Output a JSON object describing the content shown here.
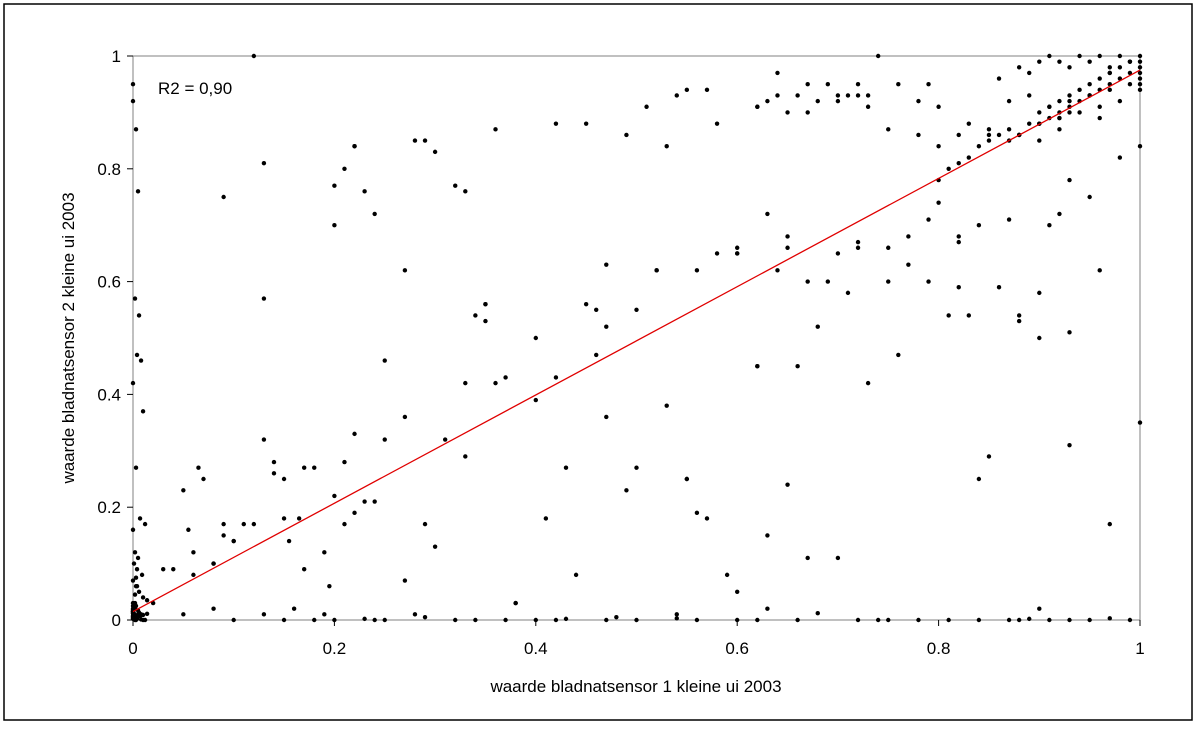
{
  "chart_data": {
    "type": "scatter",
    "title": "",
    "xlabel": "waarde bladnatsensor 1 kleine ui 2003",
    "ylabel": "waarde bladnatsensor 2 kleine ui 2003",
    "xlim": [
      0,
      1
    ],
    "ylim": [
      0,
      1
    ],
    "x_ticks": [
      "0",
      "0.2",
      "0.4",
      "0.6",
      "0.8",
      "1"
    ],
    "y_ticks": [
      "0",
      "0.2",
      "0.4",
      "0.6",
      "0.8",
      "1"
    ],
    "grid": false,
    "legend": "none",
    "annotation": "R2 = 0,90",
    "trendline": {
      "x": [
        0,
        1
      ],
      "y": [
        0.015,
        0.975
      ],
      "color": "#e00000"
    },
    "point_color": "#000000",
    "series": [
      {
        "x": [
          0.0,
          0.0,
          0.003,
          0.005,
          0.002,
          0.006,
          0.004,
          0.008,
          0.0,
          0.01,
          0.003,
          0.007,
          0.012,
          0.0,
          0.002,
          0.005,
          0.001,
          0.004,
          0.009,
          0.0,
          0.003,
          0.006,
          0.01,
          0.014,
          0.002,
          0.0,
          0.001,
          0.0,
          0.0,
          0.0,
          0.002,
          0.005,
          0.0,
          0.0,
          0.001,
          0.0,
          0.004,
          0.008,
          0.01,
          0.012,
          0.003,
          0.002,
          0.0,
          0.0,
          0.0,
          0.005,
          0.0,
          0.002,
          0.003,
          0.001,
          0.004,
          0.007,
          0.01,
          0.014,
          0.006,
          0.0,
          0.0,
          0.001,
          0.0,
          0.008,
          0.0,
          0.002,
          0.004,
          0.003,
          0.03,
          0.05,
          0.055,
          0.06,
          0.065,
          0.07,
          0.08,
          0.09,
          0.1,
          0.11,
          0.13,
          0.14,
          0.15,
          0.155,
          0.165,
          0.18,
          0.19,
          0.195,
          0.2,
          0.21,
          0.22,
          0.23,
          0.25,
          0.27,
          0.3,
          0.31,
          0.33,
          0.35,
          0.36,
          0.37,
          0.4,
          0.42,
          0.43,
          0.45,
          0.46,
          0.47,
          0.5,
          0.52,
          0.55,
          0.57,
          0.6,
          0.62,
          0.63,
          0.65,
          0.66,
          0.67,
          0.69,
          0.7,
          0.72,
          0.75,
          0.77,
          0.8,
          0.82,
          0.85,
          0.87,
          0.9,
          0.04,
          0.06,
          0.08,
          0.09,
          0.12,
          0.15,
          0.17,
          0.21,
          0.22,
          0.24,
          0.27,
          0.29,
          0.33,
          0.35,
          0.38,
          0.41,
          0.44,
          0.47,
          0.5,
          0.53,
          0.56,
          0.59,
          0.62,
          0.65,
          0.68,
          0.71,
          0.73,
          0.76,
          0.79,
          0.82,
          0.84,
          0.88,
          0.91,
          0.93,
          0.12,
          0.13,
          0.2,
          0.21,
          0.22,
          0.22,
          0.23,
          0.24,
          0.28,
          0.29,
          0.3,
          0.32,
          0.33,
          0.36,
          0.42,
          0.45,
          0.49,
          0.51,
          0.53,
          0.54,
          0.55,
          0.57,
          0.58,
          0.62,
          0.63,
          0.64,
          0.66,
          0.67,
          0.69,
          0.7,
          0.72,
          0.73,
          0.74,
          0.78,
          0.8,
          0.09,
          0.1,
          0.13,
          0.14,
          0.17,
          0.2,
          0.25,
          0.27,
          0.34,
          0.35,
          0.4,
          0.46,
          0.47,
          0.49,
          0.52,
          0.55,
          0.56,
          0.58,
          0.6,
          0.63,
          0.64,
          0.65,
          0.67,
          0.72,
          0.75,
          0.77,
          0.79,
          0.81,
          0.82,
          0.83,
          0.84,
          0.86,
          0.88,
          0.9,
          0.92,
          0.93,
          0.95,
          0.96,
          0.98,
          0.15,
          0.18,
          0.19,
          0.23,
          0.25,
          0.29,
          0.32,
          0.37,
          0.4,
          0.43,
          0.48,
          0.5,
          0.54,
          0.56,
          0.6,
          0.62,
          0.66,
          0.68,
          0.72,
          0.74,
          0.78,
          0.81,
          0.84,
          0.87,
          0.89,
          0.91,
          0.93,
          0.95,
          0.97,
          0.99,
          1.0,
          1.0,
          0.8,
          0.81,
          0.82,
          0.83,
          0.84,
          0.85,
          0.86,
          0.87,
          0.88,
          0.89,
          0.9,
          0.9,
          0.91,
          0.91,
          0.92,
          0.92,
          0.93,
          0.93,
          0.94,
          0.94,
          0.95,
          0.95,
          0.96,
          0.96,
          0.97,
          0.97,
          0.98,
          0.98,
          0.99,
          0.99,
          1.0,
          1.0,
          1.0,
          1.0,
          1.0,
          1.0,
          0.86,
          0.88,
          0.89,
          0.9,
          0.91,
          0.92,
          0.93,
          0.94,
          0.95,
          0.96,
          0.97,
          0.98,
          0.99,
          0.87,
          0.89,
          0.91,
          0.93,
          0.95,
          0.97,
          0.99,
          0.9,
          0.92,
          0.94,
          0.96,
          0.98,
          0.85,
          0.88,
          0.92,
          0.96,
          1.0,
          0.6,
          0.62,
          0.64,
          0.65,
          0.67,
          0.68,
          0.7,
          0.71,
          0.72,
          0.73,
          0.75,
          0.76,
          0.78,
          0.79,
          0.8,
          0.82,
          0.83,
          0.85,
          0.87,
          0.88,
          0.9,
          0.92,
          0.93,
          0.95,
          0.97,
          0.02,
          0.05,
          0.08,
          0.1,
          0.13,
          0.16,
          0.2,
          0.24,
          0.28,
          0.34,
          0.38,
          0.42,
          0.47,
          0.54,
          0.6,
          0.63,
          0.7,
          0.75,
          0.88,
          0.9,
          0.93,
          0.97
        ],
        "y": [
          0.95,
          0.92,
          0.87,
          0.76,
          0.57,
          0.54,
          0.47,
          0.46,
          0.42,
          0.37,
          0.27,
          0.18,
          0.17,
          0.16,
          0.12,
          0.11,
          0.1,
          0.09,
          0.08,
          0.07,
          0.06,
          0.05,
          0.04,
          0.035,
          0.03,
          0.025,
          0.02,
          0.018,
          0.015,
          0.012,
          0.01,
          0.008,
          0.006,
          0.005,
          0.004,
          0.003,
          0.002,
          0.001,
          0.0,
          0.0,
          0.0,
          0.0,
          0.002,
          0.012,
          0.015,
          0.017,
          0.02,
          0.022,
          0.025,
          0.005,
          0.006,
          0.007,
          0.009,
          0.011,
          0.013,
          0.014,
          0.016,
          0.018,
          0.008,
          0.01,
          0.03,
          0.045,
          0.06,
          0.075,
          0.09,
          0.23,
          0.16,
          0.12,
          0.27,
          0.25,
          0.1,
          0.17,
          0.14,
          0.17,
          0.32,
          0.28,
          0.25,
          0.14,
          0.18,
          0.27,
          0.12,
          0.06,
          0.22,
          0.28,
          0.33,
          0.21,
          0.32,
          0.36,
          0.13,
          0.32,
          0.42,
          0.56,
          0.42,
          0.43,
          0.39,
          0.43,
          0.27,
          0.56,
          0.47,
          0.52,
          0.55,
          0.62,
          0.25,
          0.18,
          0.66,
          0.45,
          0.15,
          0.68,
          0.45,
          0.11,
          0.6,
          0.65,
          0.66,
          0.6,
          0.68,
          0.74,
          0.68,
          0.29,
          0.71,
          0.5,
          0.09,
          0.08,
          0.1,
          0.15,
          0.17,
          0.18,
          0.09,
          0.17,
          0.19,
          0.21,
          0.07,
          0.17,
          0.29,
          0.53,
          0.03,
          0.18,
          0.08,
          0.36,
          0.27,
          0.38,
          0.19,
          0.08,
          0.45,
          0.24,
          0.52,
          0.58,
          0.42,
          0.47,
          0.6,
          0.67,
          0.25,
          0.54,
          0.7,
          0.78,
          1.0,
          0.81,
          0.77,
          0.8,
          0.84,
          0.84,
          0.76,
          0.72,
          0.85,
          0.85,
          0.83,
          0.77,
          0.76,
          0.87,
          0.88,
          0.88,
          0.86,
          0.91,
          0.84,
          0.93,
          0.94,
          0.94,
          0.88,
          0.91,
          0.92,
          0.97,
          0.93,
          0.9,
          0.95,
          0.93,
          0.95,
          0.93,
          1.0,
          0.86,
          0.91,
          0.75,
          0.14,
          0.57,
          0.26,
          0.27,
          0.7,
          0.46,
          0.62,
          0.54,
          0.56,
          0.5,
          0.55,
          0.63,
          0.23,
          0.62,
          0.25,
          0.62,
          0.65,
          0.65,
          0.72,
          0.62,
          0.66,
          0.6,
          0.67,
          0.66,
          0.63,
          0.71,
          0.54,
          0.59,
          0.54,
          0.7,
          0.59,
          0.53,
          0.58,
          0.72,
          0.51,
          0.75,
          0.62,
          0.82,
          0.0,
          0.0,
          0.01,
          0.002,
          0.0,
          0.005,
          0.0,
          0.0,
          0.0,
          0.002,
          0.005,
          0.0,
          0.003,
          0.0,
          0.0,
          0.0,
          0.0,
          0.012,
          0.0,
          0.0,
          0.0,
          0.0,
          0.0,
          0.0,
          0.002,
          0.0,
          0.0,
          0.0,
          0.003,
          0.0,
          0.84,
          0.35,
          0.78,
          0.8,
          0.81,
          0.82,
          0.84,
          0.85,
          0.86,
          0.87,
          0.86,
          0.88,
          0.88,
          0.9,
          0.89,
          0.91,
          0.9,
          0.92,
          0.91,
          0.93,
          0.92,
          0.94,
          0.93,
          0.95,
          0.94,
          0.96,
          0.95,
          0.97,
          0.96,
          0.98,
          0.97,
          0.99,
          0.98,
          0.99,
          1.0,
          0.96,
          0.95,
          0.94,
          0.96,
          0.98,
          0.97,
          0.99,
          1.0,
          0.99,
          0.98,
          1.0,
          0.99,
          1.0,
          0.98,
          1.0,
          0.99,
          0.92,
          0.93,
          0.91,
          0.92,
          0.93,
          0.94,
          0.95,
          0.88,
          0.89,
          0.9,
          0.91,
          0.92,
          0.87,
          0.86,
          0.87,
          0.89,
          0.97,
          0.65,
          0.91,
          0.93,
          0.9,
          0.95,
          0.92,
          0.92,
          0.93,
          0.93,
          0.91,
          0.87,
          0.95,
          0.92,
          0.95,
          0.84,
          0.86,
          0.88,
          0.86,
          0.85,
          0.86,
          0.85,
          0.89,
          0.9,
          0.93,
          0.97,
          0.03,
          0.01,
          0.02,
          0.0,
          0.01,
          0.02,
          0.0,
          0.0,
          0.01,
          0.0,
          0.03,
          0.0,
          0.0,
          0.01,
          0.05,
          0.02,
          0.11,
          0.0,
          0.0,
          0.02,
          0.31,
          0.17
        ]
      }
    ]
  }
}
